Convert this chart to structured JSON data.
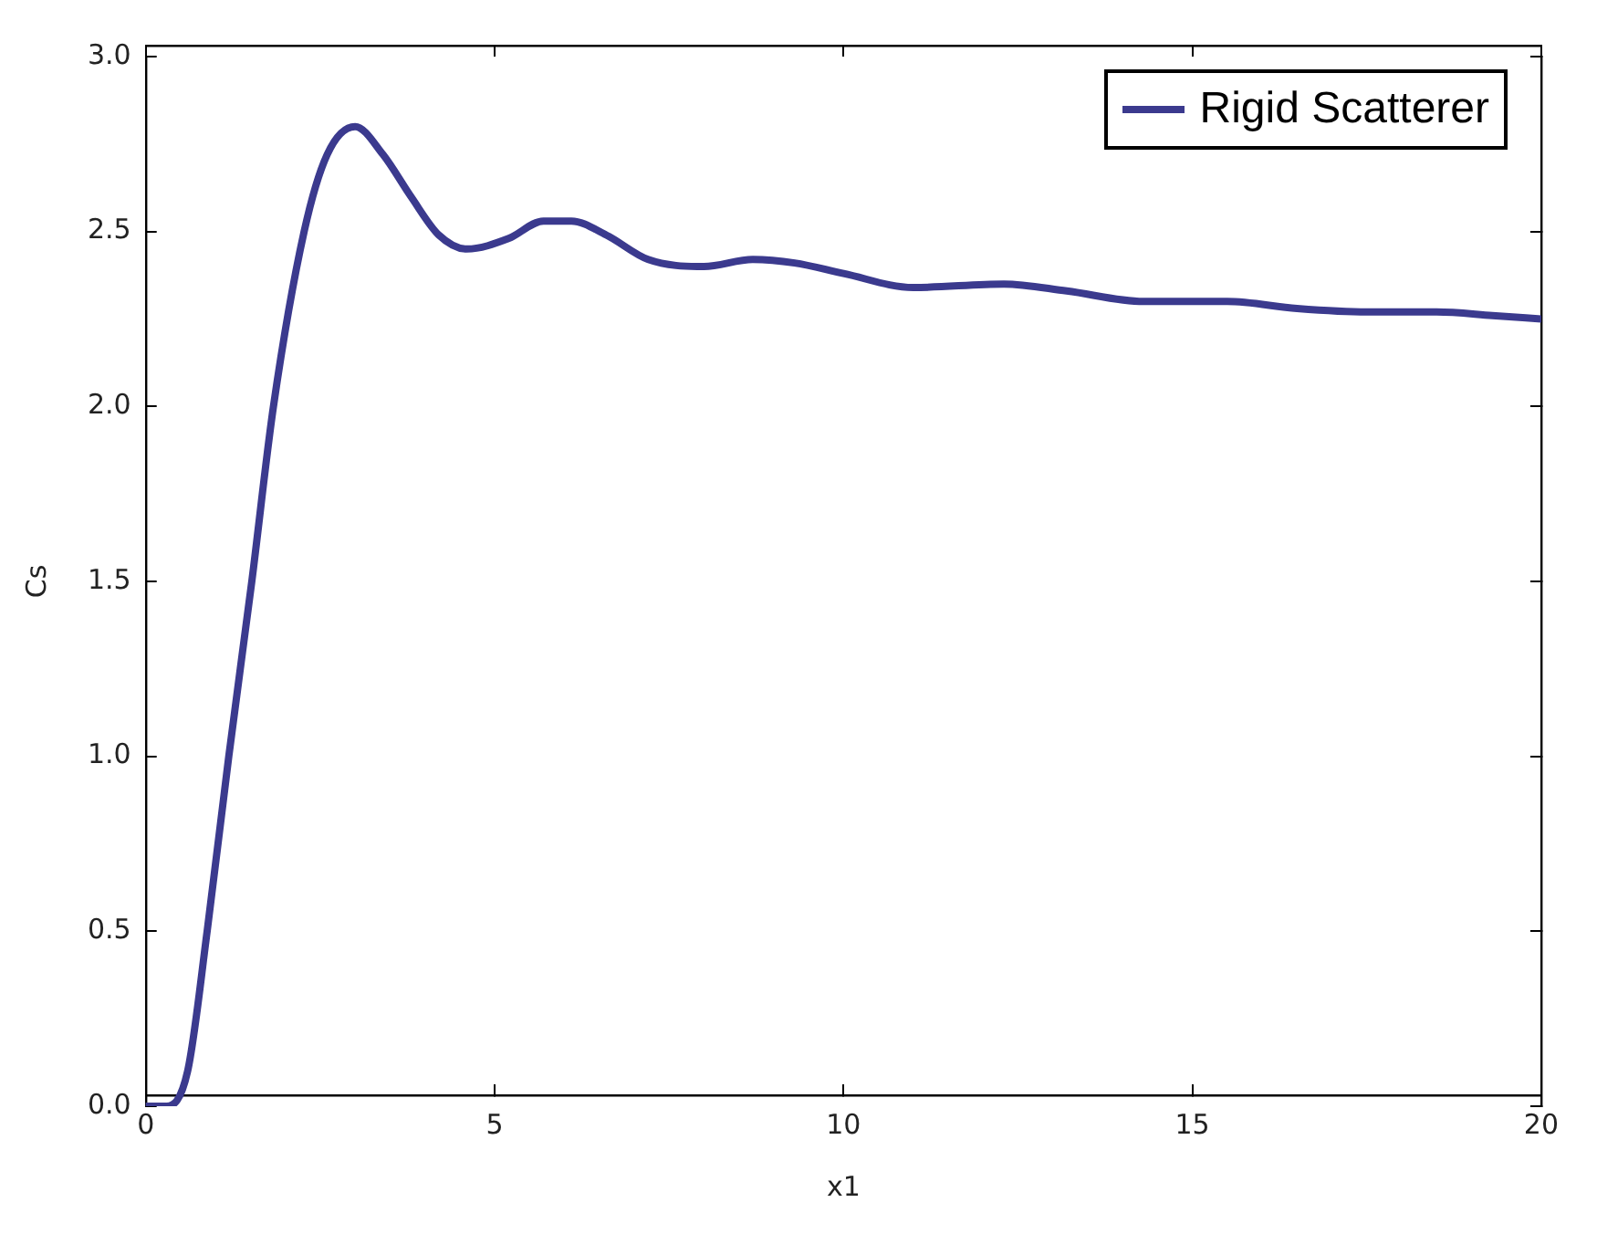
{
  "chart_data": {
    "type": "line",
    "xlabel": "x1",
    "ylabel": "Cs",
    "xlim": [
      0,
      20
    ],
    "ylim": [
      0,
      3
    ],
    "xticks": [
      0,
      5,
      10,
      15,
      20
    ],
    "yticks": [
      {
        "value": 0,
        "label": "0.0"
      },
      {
        "value": 0.5,
        "label": "0.5"
      },
      {
        "value": 1,
        "label": "1.0"
      },
      {
        "value": 1.5,
        "label": "1.5"
      },
      {
        "value": 2,
        "label": "2.0"
      },
      {
        "value": 2.5,
        "label": "2.5"
      },
      {
        "value": 3,
        "label": "3.0"
      }
    ],
    "grid": false,
    "legend": "top right",
    "marker": "none",
    "line_style": "solid",
    "x": [
      0,
      0.3,
      0.6,
      0.88,
      1.19,
      1.52,
      1.83,
      2.27,
      2.6,
      3.0,
      3.4,
      3.8,
      4.2,
      4.6,
      5.2,
      5.7,
      6.1,
      6.6,
      7.2,
      8,
      8.7,
      9.3,
      10,
      11,
      12.3,
      13.2,
      14.3,
      15.5,
      16.5,
      17.5,
      18.5,
      19.3,
      20
    ],
    "series": [
      {
        "name": "Rigid Scatterer",
        "color": "#3b3a8e",
        "values": [
          0,
          0,
          0.1,
          0.5,
          1.0,
          1.5,
          2.0,
          2.5,
          2.72,
          2.8,
          2.72,
          2.6,
          2.49,
          2.45,
          2.48,
          2.53,
          2.53,
          2.49,
          2.42,
          2.4,
          2.42,
          2.41,
          2.38,
          2.34,
          2.35,
          2.33,
          2.3,
          2.3,
          2.28,
          2.27,
          2.27,
          2.26,
          2.25
        ]
      }
    ]
  }
}
